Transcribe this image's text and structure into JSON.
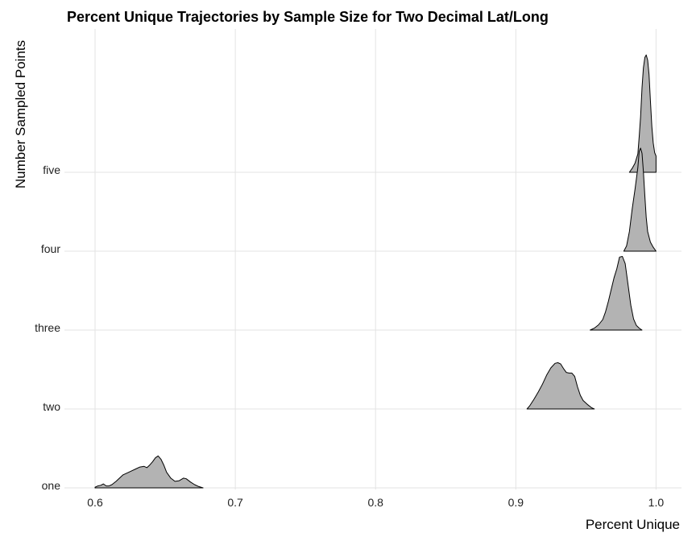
{
  "chart_data": {
    "type": "ridgeline",
    "title": "Percent Unique Trajectories by Sample Size for Two Decimal Lat/Long",
    "xlabel": "Percent Unique",
    "ylabel": "Number Sampled Points",
    "xlim": [
      0.575,
      1.018
    ],
    "x_ticks": [
      "0.6",
      "0.7",
      "0.8",
      "0.9",
      "1.0"
    ],
    "x_tick_values": [
      0.6,
      0.7,
      0.8,
      0.9,
      1.0
    ],
    "categories": [
      "one",
      "two",
      "three",
      "four",
      "five"
    ],
    "grid": true,
    "fill_color": "#b3b3b3",
    "series": [
      {
        "category": "one",
        "points": [
          [
            0.6,
            0.01
          ],
          [
            0.602,
            0.03
          ],
          [
            0.604,
            0.04
          ],
          [
            0.606,
            0.06
          ],
          [
            0.608,
            0.03
          ],
          [
            0.61,
            0.03
          ],
          [
            0.612,
            0.05
          ],
          [
            0.615,
            0.1
          ],
          [
            0.618,
            0.16
          ],
          [
            0.62,
            0.2
          ],
          [
            0.623,
            0.23
          ],
          [
            0.626,
            0.26
          ],
          [
            0.629,
            0.29
          ],
          [
            0.632,
            0.32
          ],
          [
            0.635,
            0.33
          ],
          [
            0.637,
            0.31
          ],
          [
            0.639,
            0.35
          ],
          [
            0.641,
            0.4
          ],
          [
            0.643,
            0.46
          ],
          [
            0.645,
            0.49
          ],
          [
            0.647,
            0.44
          ],
          [
            0.649,
            0.35
          ],
          [
            0.651,
            0.24
          ],
          [
            0.654,
            0.15
          ],
          [
            0.657,
            0.1
          ],
          [
            0.66,
            0.11
          ],
          [
            0.663,
            0.15
          ],
          [
            0.665,
            0.14
          ],
          [
            0.668,
            0.09
          ],
          [
            0.671,
            0.05
          ],
          [
            0.674,
            0.02
          ],
          [
            0.677,
            0.0
          ]
        ]
      },
      {
        "category": "two",
        "points": [
          [
            0.908,
            0.0
          ],
          [
            0.91,
            0.05
          ],
          [
            0.913,
            0.15
          ],
          [
            0.916,
            0.26
          ],
          [
            0.919,
            0.38
          ],
          [
            0.922,
            0.52
          ],
          [
            0.925,
            0.63
          ],
          [
            0.928,
            0.7
          ],
          [
            0.93,
            0.71
          ],
          [
            0.932,
            0.69
          ],
          [
            0.934,
            0.62
          ],
          [
            0.936,
            0.56
          ],
          [
            0.938,
            0.55
          ],
          [
            0.94,
            0.55
          ],
          [
            0.942,
            0.5
          ],
          [
            0.944,
            0.34
          ],
          [
            0.946,
            0.21
          ],
          [
            0.948,
            0.13
          ],
          [
            0.951,
            0.07
          ],
          [
            0.954,
            0.02
          ],
          [
            0.956,
            0.0
          ]
        ]
      },
      {
        "category": "three",
        "points": [
          [
            0.953,
            0.0
          ],
          [
            0.956,
            0.03
          ],
          [
            0.959,
            0.08
          ],
          [
            0.962,
            0.16
          ],
          [
            0.964,
            0.28
          ],
          [
            0.966,
            0.44
          ],
          [
            0.968,
            0.62
          ],
          [
            0.97,
            0.8
          ],
          [
            0.972,
            0.94
          ],
          [
            0.974,
            1.12
          ],
          [
            0.976,
            1.13
          ],
          [
            0.978,
            1.02
          ],
          [
            0.98,
            0.7
          ],
          [
            0.982,
            0.38
          ],
          [
            0.984,
            0.17
          ],
          [
            0.986,
            0.07
          ],
          [
            0.988,
            0.03
          ],
          [
            0.99,
            0.0
          ]
        ]
      },
      {
        "category": "four",
        "points": [
          [
            0.977,
            0.0
          ],
          [
            0.979,
            0.08
          ],
          [
            0.981,
            0.3
          ],
          [
            0.983,
            0.65
          ],
          [
            0.985,
            0.95
          ],
          [
            0.987,
            1.28
          ],
          [
            0.988,
            1.53
          ],
          [
            0.989,
            1.58
          ],
          [
            0.99,
            1.5
          ],
          [
            0.991,
            1.22
          ],
          [
            0.992,
            0.85
          ],
          [
            0.993,
            0.52
          ],
          [
            0.994,
            0.3
          ],
          [
            0.996,
            0.14
          ],
          [
            0.998,
            0.06
          ],
          [
            1.0,
            0.0
          ]
        ]
      },
      {
        "category": "five",
        "points": [
          [
            0.981,
            0.0
          ],
          [
            0.983,
            0.06
          ],
          [
            0.985,
            0.14
          ],
          [
            0.987,
            0.28
          ],
          [
            0.988,
            0.55
          ],
          [
            0.989,
            0.85
          ],
          [
            0.99,
            1.3
          ],
          [
            0.991,
            1.6
          ],
          [
            0.992,
            1.76
          ],
          [
            0.993,
            1.8
          ],
          [
            0.994,
            1.72
          ],
          [
            0.995,
            1.5
          ],
          [
            0.996,
            1.1
          ],
          [
            0.997,
            0.7
          ],
          [
            0.998,
            0.45
          ],
          [
            0.999,
            0.3
          ],
          [
            1.0,
            0.25
          ]
        ]
      }
    ]
  }
}
